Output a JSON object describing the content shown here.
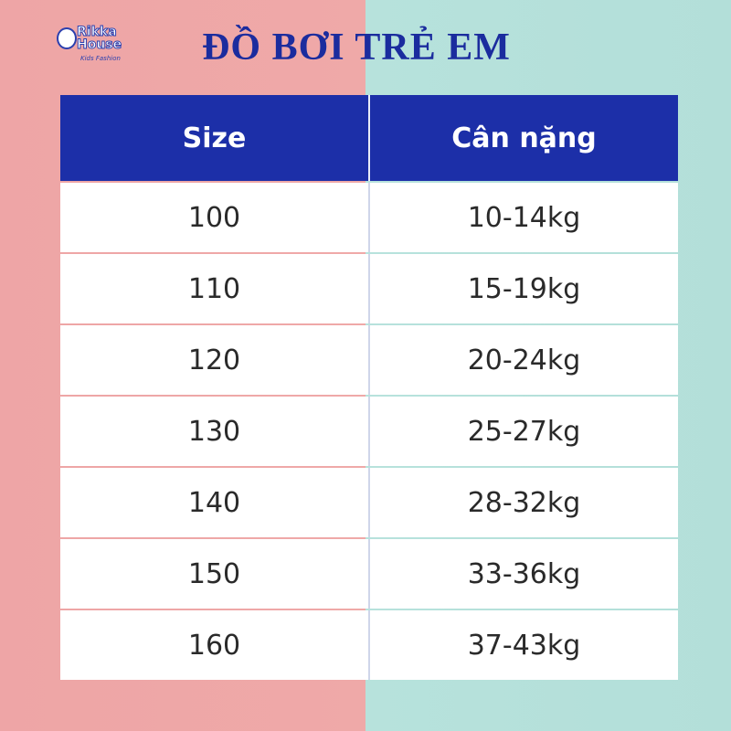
{
  "logo": {
    "line1": "Rikka",
    "line2": "House",
    "tagline": "Kids Fashion"
  },
  "title": "ĐỒ BƠI TRẺ EM",
  "table": {
    "header": [
      "Size",
      "Cân nặng"
    ],
    "rows": [
      [
        "100",
        "10-14kg"
      ],
      [
        "110",
        "15-19kg"
      ],
      [
        "120",
        "20-24kg"
      ],
      [
        "130",
        "25-27kg"
      ],
      [
        "140",
        "28-32kg"
      ],
      [
        "150",
        "33-36kg"
      ],
      [
        "160",
        "37-43kg"
      ]
    ]
  }
}
